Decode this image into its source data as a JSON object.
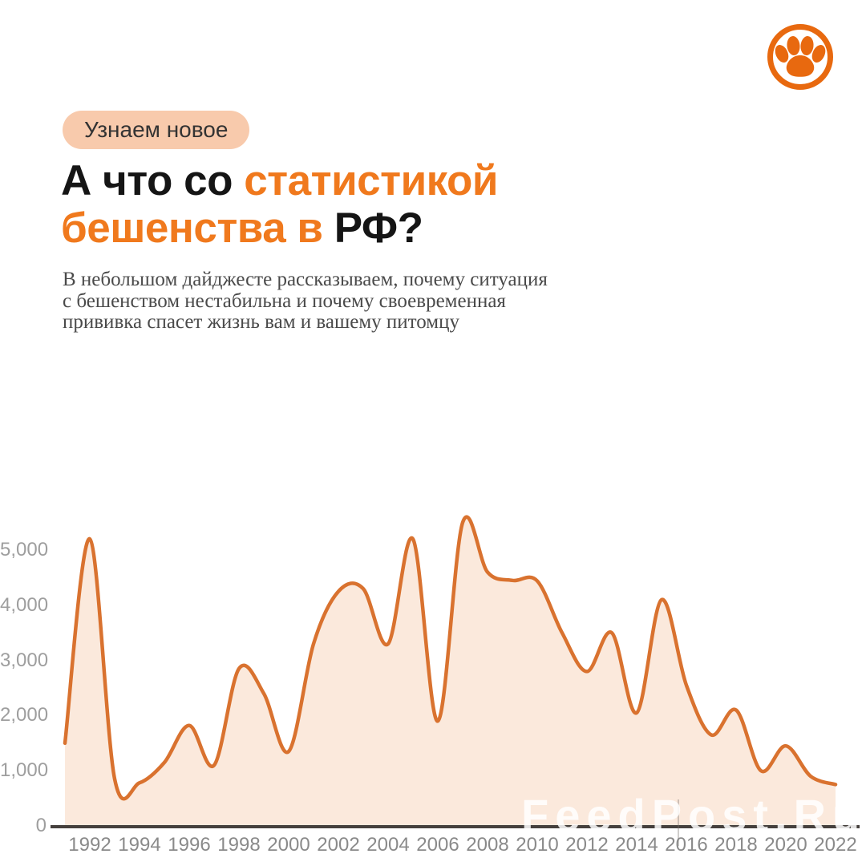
{
  "page": {
    "background": "#FFFFFF"
  },
  "brand": {
    "icon": "paw-icon",
    "color": "#E8690F"
  },
  "badge": {
    "label": "Узнаем новое",
    "bg": "#F8CAAC"
  },
  "header": {
    "accent_color": "#F0791D",
    "dark_color": "#151515",
    "title_lines": [
      [
        {
          "text": "А что со ",
          "tone": "dark"
        },
        {
          "text": "статистикой",
          "tone": "accent"
        }
      ],
      [
        {
          "text": "бешенства в ",
          "tone": "accent"
        },
        {
          "text": "РФ?",
          "tone": "dark"
        }
      ]
    ],
    "title_plain": "А что со статистикой бешенства в РФ?"
  },
  "subtitle": {
    "lines": [
      "В небольшом дайджесте рассказываем, почему ситуация",
      "с бешенством нестабильна и почему своевременная",
      "прививка спасет жизнь вам и вашему питомцу"
    ]
  },
  "watermark": {
    "text": "FeedPost.Ru"
  },
  "chart_data": {
    "type": "area",
    "title": "",
    "xlabel": "",
    "ylabel": "",
    "grid": false,
    "legend": false,
    "line_color": "#D9722F",
    "fill_color": "#FBE9DC",
    "ylim": [
      0,
      5500
    ],
    "x": [
      1991,
      1992,
      1993,
      1994,
      1995,
      1996,
      1997,
      1998,
      1999,
      2000,
      2001,
      2002,
      2003,
      2004,
      2005,
      2006,
      2007,
      2008,
      2009,
      2010,
      2011,
      2012,
      2013,
      2014,
      2015,
      2016,
      2017,
      2018,
      2019,
      2020,
      2021,
      2022
    ],
    "series": [
      {
        "name": "rabies-cases",
        "values": [
          1500,
          5200,
          850,
          780,
          1150,
          1820,
          1100,
          2850,
          2400,
          1350,
          3300,
          4250,
          4300,
          3300,
          5200,
          1900,
          5500,
          4600,
          4450,
          4440,
          3500,
          2800,
          3500,
          2050,
          4100,
          2550,
          1650,
          2100,
          1000,
          1450,
          900,
          750
        ]
      }
    ],
    "yticks": {
      "values": [
        0,
        1000,
        2000,
        3000,
        4000,
        5000
      ],
      "labels": [
        "0",
        "1,000",
        "2,000",
        "3,000",
        "4,000",
        "5,000"
      ]
    },
    "xticks": {
      "values": [
        1992,
        1994,
        1996,
        1998,
        2000,
        2002,
        2004,
        2006,
        2008,
        2010,
        2012,
        2014,
        2016,
        2018,
        2020,
        2022
      ],
      "labels": [
        "1992",
        "1994",
        "1996",
        "1998",
        "2000",
        "2002",
        "2004",
        "2006",
        "2008",
        "2010",
        "2012",
        "2014",
        "2016",
        "2018",
        "2020",
        "2022"
      ]
    }
  }
}
